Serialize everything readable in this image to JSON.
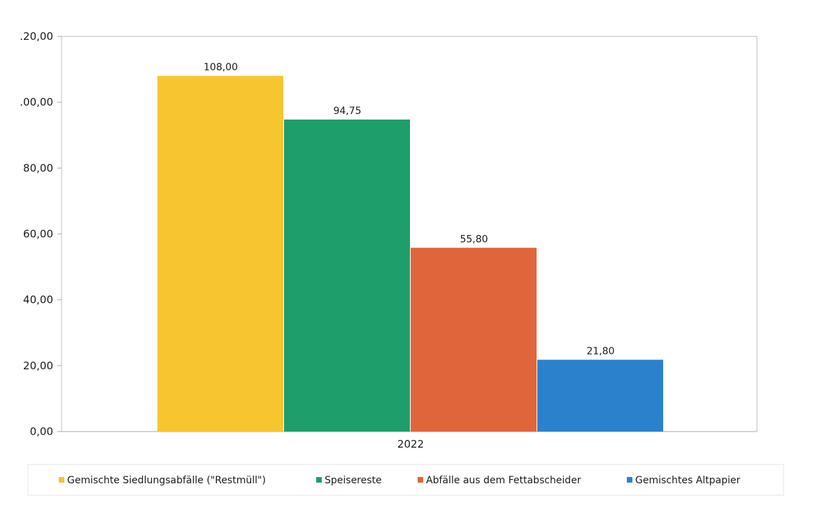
{
  "chart_data": {
    "type": "bar",
    "categories": [
      "2022"
    ],
    "series": [
      {
        "name": "Gemischte Siedlungsabfälle (\"Restmüll\")",
        "values": [
          108.0
        ],
        "value_label": "108,00",
        "color": "#f7c52f"
      },
      {
        "name": "Speisereste",
        "values": [
          94.75
        ],
        "value_label": "94,75",
        "color": "#1e9e6a"
      },
      {
        "name": "Abfälle aus dem Fettabscheider",
        "values": [
          55.8
        ],
        "value_label": "55,80",
        "color": "#e0653a"
      },
      {
        "name": "Gemischtes Altpapier",
        "values": [
          21.8
        ],
        "value_label": "21,80",
        "color": "#2a82cc"
      }
    ],
    "y_ticks": [
      {
        "value": 0,
        "label": "0,00"
      },
      {
        "value": 20,
        "label": "20,00"
      },
      {
        "value": 40,
        "label": "40,00"
      },
      {
        "value": 60,
        "label": "60,00"
      },
      {
        "value": 80,
        "label": "80,00"
      },
      {
        "value": 100,
        "label": ".00,00"
      },
      {
        "value": 120,
        "label": ".20,00"
      }
    ],
    "ylim": [
      0,
      120
    ],
    "title": "",
    "xlabel": "",
    "ylabel": "",
    "grid": false,
    "legend_position": "bottom"
  }
}
